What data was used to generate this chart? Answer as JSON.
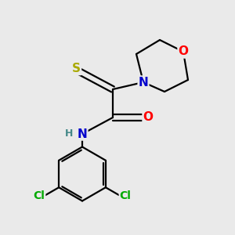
{
  "background_color": "#eaeaea",
  "bond_color": "#000000",
  "atom_colors": {
    "S": "#aaaa00",
    "N": "#0000cc",
    "O": "#ff0000",
    "Cl": "#00aa00",
    "H": "#448888",
    "C": "#000000"
  },
  "bond_width": 1.6,
  "figsize": [
    3.0,
    3.0
  ],
  "dpi": 100
}
